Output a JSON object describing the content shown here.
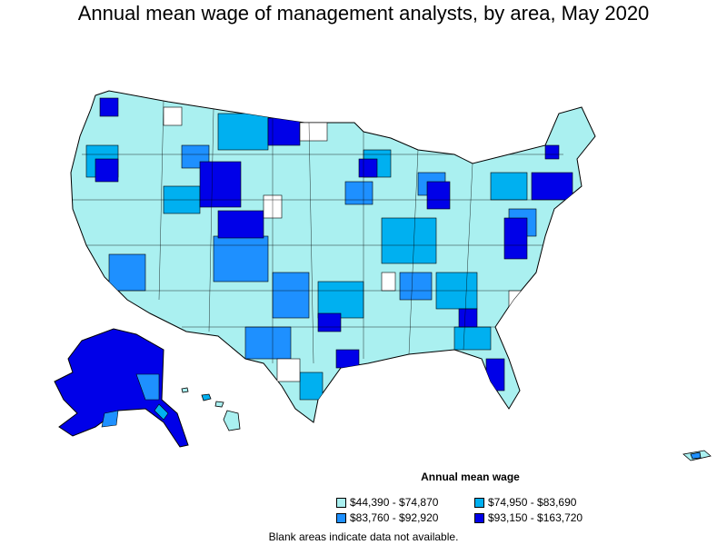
{
  "title": "Annual mean wage of management analysts, by area, May 2020",
  "legend": {
    "title": "Annual mean wage",
    "items": [
      {
        "label": "$44,390 - $74,870",
        "color": "#aaf0f0"
      },
      {
        "label": "$74,950 - $83,690",
        "color": "#00b0f0"
      },
      {
        "label": "$83,760 - $92,920",
        "color": "#1e90ff"
      },
      {
        "label": "$93,150 - $163,720",
        "color": "#0000e8"
      }
    ]
  },
  "footnote": "Blank areas indicate data not available.",
  "colors": {
    "tier1": "#aaf0f0",
    "tier2": "#00b0f0",
    "tier3": "#1e90ff",
    "tier4": "#0000e8",
    "blank": "#ffffff",
    "border": "#000000"
  }
}
